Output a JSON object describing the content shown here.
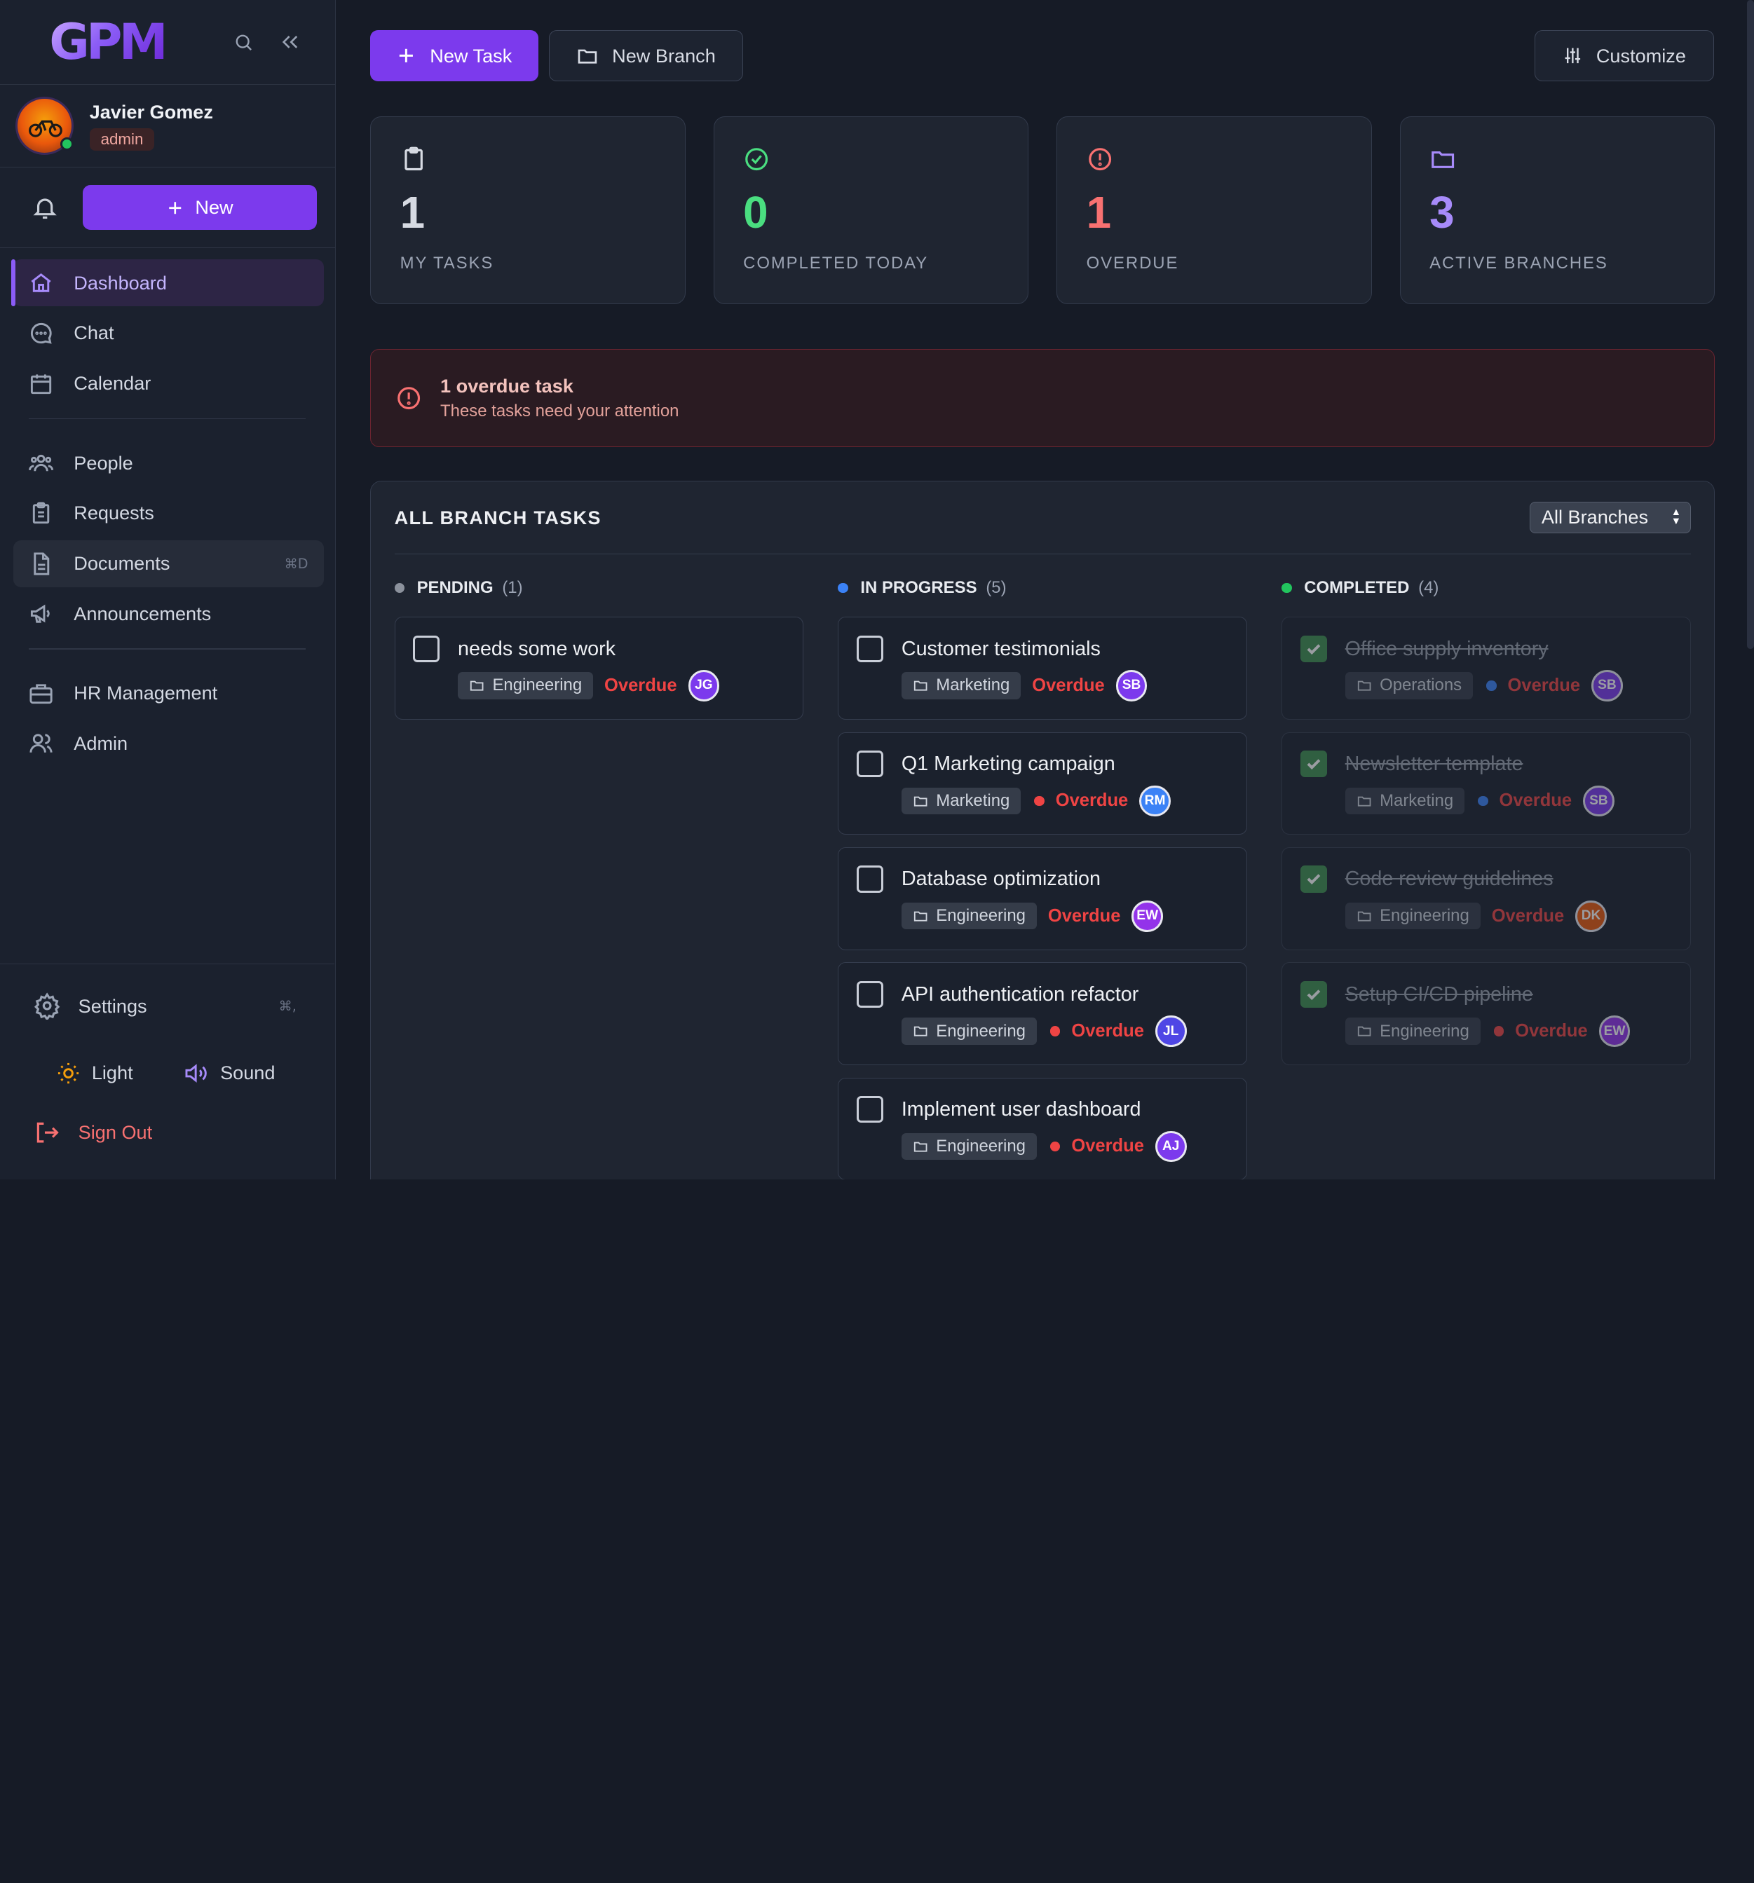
{
  "app": {
    "logo": "GPM"
  },
  "user": {
    "name": "Javier Gomez",
    "role": "admin"
  },
  "sidebar": {
    "new_label": "New",
    "nav": [
      {
        "label": "Dashboard",
        "icon": "home-icon"
      },
      {
        "label": "Chat",
        "icon": "chat-icon"
      },
      {
        "label": "Calendar",
        "icon": "calendar-icon"
      },
      {
        "label": "People",
        "icon": "people-icon"
      },
      {
        "label": "Requests",
        "icon": "clipboard-icon"
      },
      {
        "label": "Documents",
        "icon": "document-icon",
        "shortcut": "⌘D"
      },
      {
        "label": "Announcements",
        "icon": "megaphone-icon"
      },
      {
        "label": "HR Management",
        "icon": "briefcase-icon"
      },
      {
        "label": "Admin",
        "icon": "admin-users-icon"
      }
    ],
    "settings": {
      "label": "Settings",
      "shortcut": "⌘,"
    },
    "light_label": "Light",
    "sound_label": "Sound",
    "signout_label": "Sign Out"
  },
  "toolbar": {
    "new_task": "New Task",
    "new_branch": "New Branch",
    "customize": "Customize"
  },
  "stats": [
    {
      "value": "1",
      "label": "MY TASKS",
      "icon": "clipboard-icon",
      "color": "#d6dae2"
    },
    {
      "value": "0",
      "label": "COMPLETED TODAY",
      "icon": "check-circle-icon",
      "color": "#4ade80"
    },
    {
      "value": "1",
      "label": "OVERDUE",
      "icon": "alert-circle-icon",
      "color": "#f87171"
    },
    {
      "value": "3",
      "label": "ACTIVE BRANCHES",
      "icon": "folder-icon",
      "color": "#a78bfa"
    }
  ],
  "alert": {
    "title": "1 overdue task",
    "subtitle": "These tasks need your attention"
  },
  "board": {
    "title": "ALL BRANCH TASKS",
    "filter": "All Branches",
    "columns": [
      {
        "name": "PENDING",
        "count": "(1)",
        "dot": "#8b919c",
        "tasks": [
          {
            "title": "needs some work",
            "branch": "Engineering",
            "status": "Overdue",
            "initials": "JG",
            "avatar_color": "#7c3aed",
            "priority": null,
            "done": false
          }
        ]
      },
      {
        "name": "IN PROGRESS",
        "count": "(5)",
        "dot": "#3b82f6",
        "tasks": [
          {
            "title": "Customer testimonials",
            "branch": "Marketing",
            "status": "Overdue",
            "initials": "SB",
            "avatar_color": "#7c3aed",
            "priority": null,
            "done": false
          },
          {
            "title": "Q1 Marketing campaign",
            "branch": "Marketing",
            "status": "Overdue",
            "initials": "RM",
            "avatar_color": "#3b82f6",
            "priority": "#ef4444",
            "done": false
          },
          {
            "title": "Database optimization",
            "branch": "Engineering",
            "status": "Overdue",
            "initials": "EW",
            "avatar_color": "#9333ea",
            "priority": null,
            "done": false
          },
          {
            "title": "API authentication refactor",
            "branch": "Engineering",
            "status": "Overdue",
            "initials": "JL",
            "avatar_color": "#4f46e5",
            "priority": "#ef4444",
            "done": false
          },
          {
            "title": "Implement user dashboard",
            "branch": "Engineering",
            "status": "Overdue",
            "initials": "AJ",
            "avatar_color": "#7c3aed",
            "priority": "#ef4444",
            "done": false
          }
        ]
      },
      {
        "name": "COMPLETED",
        "count": "(4)",
        "dot": "#22c55e",
        "tasks": [
          {
            "title": "Office supply inventory",
            "branch": "Operations",
            "status": "Overdue",
            "initials": "SB",
            "avatar_color": "#7c3aed",
            "priority": "#3b82f6",
            "done": true
          },
          {
            "title": "Newsletter template",
            "branch": "Marketing",
            "status": "Overdue",
            "initials": "SB",
            "avatar_color": "#7c3aed",
            "priority": "#3b82f6",
            "done": true
          },
          {
            "title": "Code review guidelines",
            "branch": "Engineering",
            "status": "Overdue",
            "initials": "DK",
            "avatar_color": "#ea580c",
            "priority": null,
            "done": true
          },
          {
            "title": "Setup CI/CD pipeline",
            "branch": "Engineering",
            "status": "Overdue",
            "initials": "EW",
            "avatar_color": "#9333ea",
            "priority": "#ef4444",
            "done": true
          }
        ]
      }
    ]
  }
}
